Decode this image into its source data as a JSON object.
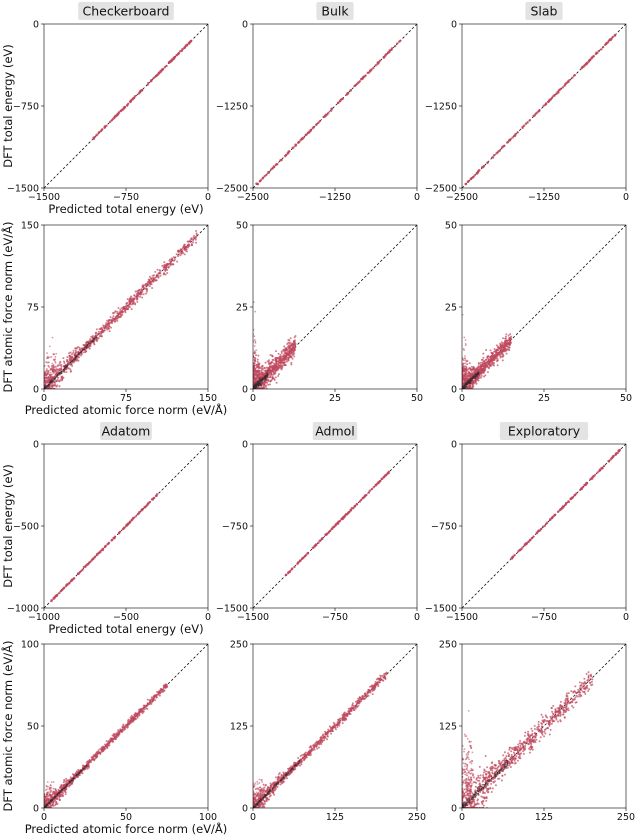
{
  "style": {
    "point_color": "#c0485e",
    "diagonal_color": "#111111",
    "frame_color": "#000000",
    "title_box_color": "#e3e3e3"
  },
  "chart_data": [
    {
      "type": "scatter",
      "title": "Checkerboard",
      "quantity": "energy",
      "xlabel": "Predicted total energy (eV)",
      "ylabel": "DFT total energy (eV)",
      "xlim": [
        -1500,
        0
      ],
      "ylim": [
        -1500,
        0
      ],
      "ticks": [
        -1500,
        -750,
        0
      ],
      "tick_labels": [
        "−1500",
        "−750",
        "0"
      ],
      "diagonal": true,
      "cluster": [
        -1050,
        -150
      ],
      "spread": 0
    },
    {
      "type": "scatter",
      "title": "Bulk",
      "quantity": "energy",
      "xlabel": "",
      "ylabel": "",
      "xlim": [
        -2500,
        0
      ],
      "ylim": [
        -2500,
        0
      ],
      "ticks": [
        -2500,
        -1250,
        0
      ],
      "tick_labels": [
        "−2500",
        "−1250",
        "0"
      ],
      "diagonal": true,
      "cluster": [
        -2450,
        -250
      ],
      "spread": 0
    },
    {
      "type": "scatter",
      "title": "Slab",
      "quantity": "energy",
      "xlabel": "",
      "ylabel": "",
      "xlim": [
        -2500,
        0
      ],
      "ylim": [
        -2500,
        0
      ],
      "ticks": [
        -2500,
        -1250,
        0
      ],
      "tick_labels": [
        "−2500",
        "−1250",
        "0"
      ],
      "diagonal": true,
      "cluster": [
        -2450,
        -100
      ],
      "spread": 0
    },
    {
      "type": "scatter",
      "title": "",
      "quantity": "force",
      "xlabel": "Predicted atomic force norm (eV/Å)",
      "ylabel": "DFT atomic force norm (eV/Å)",
      "xlim": [
        0,
        150
      ],
      "ylim": [
        0,
        150
      ],
      "ticks": [
        0,
        75,
        150
      ],
      "tick_labels": [
        "0",
        "75",
        "150"
      ],
      "diagonal": true,
      "cluster": [
        0,
        140
      ],
      "spread": 2.5
    },
    {
      "type": "scatter",
      "title": "",
      "quantity": "force",
      "xlabel": "",
      "ylabel": "",
      "xlim": [
        0,
        50
      ],
      "ylim": [
        0,
        50
      ],
      "ticks": [
        0,
        25,
        50
      ],
      "tick_labels": [
        "0",
        "25",
        "50"
      ],
      "diagonal": true,
      "cluster": [
        0,
        13
      ],
      "spread": 1.6
    },
    {
      "type": "scatter",
      "title": "",
      "quantity": "force",
      "xlabel": "",
      "ylabel": "",
      "xlim": [
        0,
        50
      ],
      "ylim": [
        0,
        50
      ],
      "ticks": [
        0,
        25,
        50
      ],
      "tick_labels": [
        "0",
        "25",
        "50"
      ],
      "diagonal": true,
      "cluster": [
        0,
        15
      ],
      "spread": 1.2
    },
    {
      "type": "scatter",
      "title": "Adatom",
      "quantity": "energy",
      "xlabel": "Predicted total energy (eV)",
      "ylabel": "DFT total energy (eV)",
      "xlim": [
        -1000,
        0
      ],
      "ylim": [
        -1000,
        0
      ],
      "ticks": [
        -1000,
        -500,
        0
      ],
      "tick_labels": [
        "−1000",
        "−500",
        "0"
      ],
      "diagonal": true,
      "cluster": [
        -960,
        -300
      ],
      "spread": 0
    },
    {
      "type": "scatter",
      "title": "Admol",
      "quantity": "energy",
      "xlabel": "",
      "ylabel": "",
      "xlim": [
        -1500,
        0
      ],
      "ylim": [
        -1500,
        0
      ],
      "ticks": [
        -1500,
        -750,
        0
      ],
      "tick_labels": [
        "−1500",
        "−750",
        "0"
      ],
      "diagonal": true,
      "cluster": [
        -1200,
        -250
      ],
      "spread": 0
    },
    {
      "type": "scatter",
      "title": "Exploratory",
      "quantity": "energy",
      "xlabel": "",
      "ylabel": "",
      "xlim": [
        -1500,
        0
      ],
      "ylim": [
        -1500,
        0
      ],
      "ticks": [
        -1500,
        -750,
        0
      ],
      "tick_labels": [
        "−1500",
        "−750",
        "0"
      ],
      "diagonal": true,
      "cluster": [
        -1050,
        -50
      ],
      "spread": 0
    },
    {
      "type": "scatter",
      "title": "",
      "quantity": "force",
      "xlabel": "Predicted atomic force norm (eV/Å)",
      "ylabel": "DFT atomic force norm (eV/Å)",
      "xlim": [
        0,
        100
      ],
      "ylim": [
        0,
        100
      ],
      "ticks": [
        0,
        50,
        100
      ],
      "tick_labels": [
        "0",
        "50",
        "100"
      ],
      "diagonal": true,
      "cluster": [
        0,
        75
      ],
      "spread": 1.0
    },
    {
      "type": "scatter",
      "title": "",
      "quantity": "force",
      "xlabel": "",
      "ylabel": "",
      "xlim": [
        0,
        250
      ],
      "ylim": [
        0,
        250
      ],
      "ticks": [
        0,
        125,
        250
      ],
      "tick_labels": [
        "0",
        "125",
        "250"
      ],
      "diagonal": true,
      "cluster": [
        0,
        205
      ],
      "spread": 3.0
    },
    {
      "type": "scatter",
      "title": "",
      "quantity": "force",
      "xlabel": "",
      "ylabel": "",
      "xlim": [
        0,
        250
      ],
      "ylim": [
        0,
        250
      ],
      "ticks": [
        0,
        125,
        250
      ],
      "tick_labels": [
        "0",
        "125",
        "250"
      ],
      "diagonal": true,
      "cluster": [
        0,
        200
      ],
      "spread": 8.0
    }
  ]
}
